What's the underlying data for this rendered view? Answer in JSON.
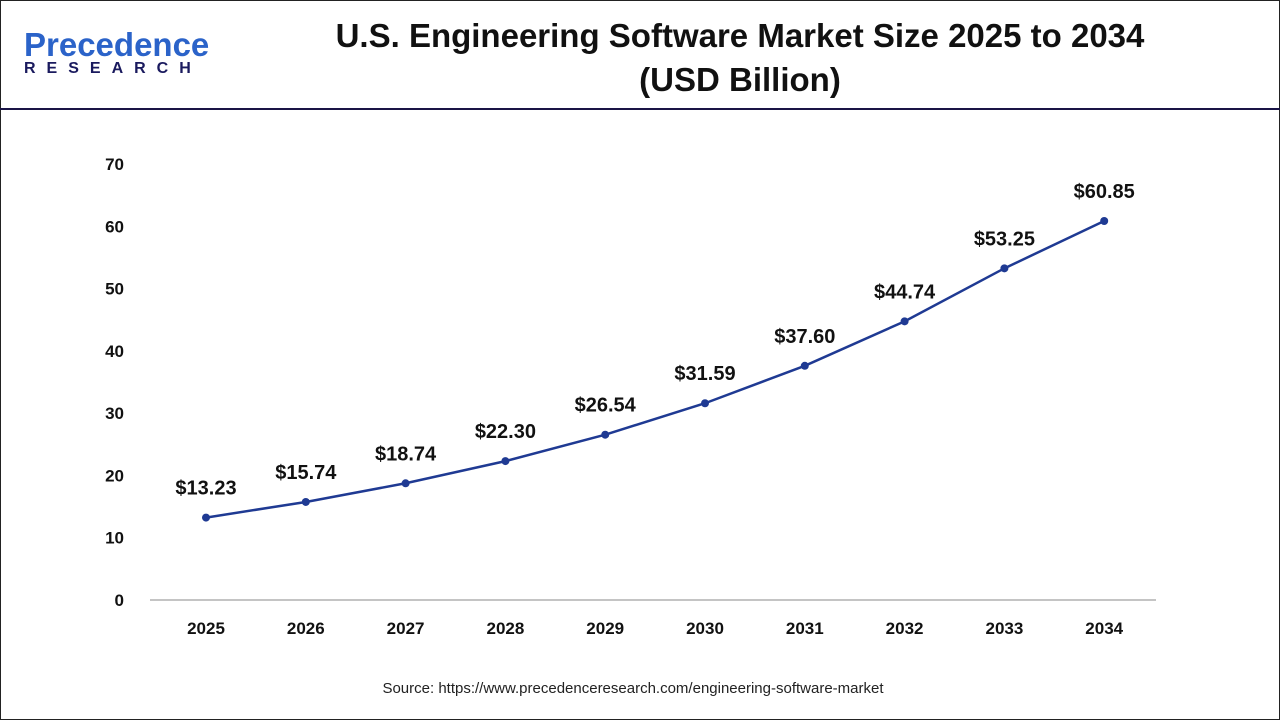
{
  "logo": {
    "line1": "Precedence",
    "line2": "RESEARCH"
  },
  "title_line1": "U.S. Engineering Software Market Size 2025 to 2034",
  "title_line2": "(USD Billion)",
  "source": "Source: https://www.precedenceresearch.com/engineering-software-market",
  "chart_data": {
    "type": "line",
    "title": "U.S. Engineering Software Market Size 2025 to 2034 (USD Billion)",
    "categories": [
      "2025",
      "2026",
      "2027",
      "2028",
      "2029",
      "2030",
      "2031",
      "2032",
      "2033",
      "2034"
    ],
    "values": [
      13.23,
      15.74,
      18.74,
      22.3,
      26.54,
      31.59,
      37.6,
      44.74,
      53.25,
      60.85
    ],
    "data_labels": [
      "$13.23",
      "$15.74",
      "$18.74",
      "$22.30",
      "$26.54",
      "$31.59",
      "$37.60",
      "$44.74",
      "$53.25",
      "$60.85"
    ],
    "yticks": [
      0,
      10,
      20,
      30,
      40,
      50,
      60,
      70
    ],
    "ylim": [
      0,
      70
    ],
    "grid": false,
    "line_color": "#1f3a93"
  }
}
